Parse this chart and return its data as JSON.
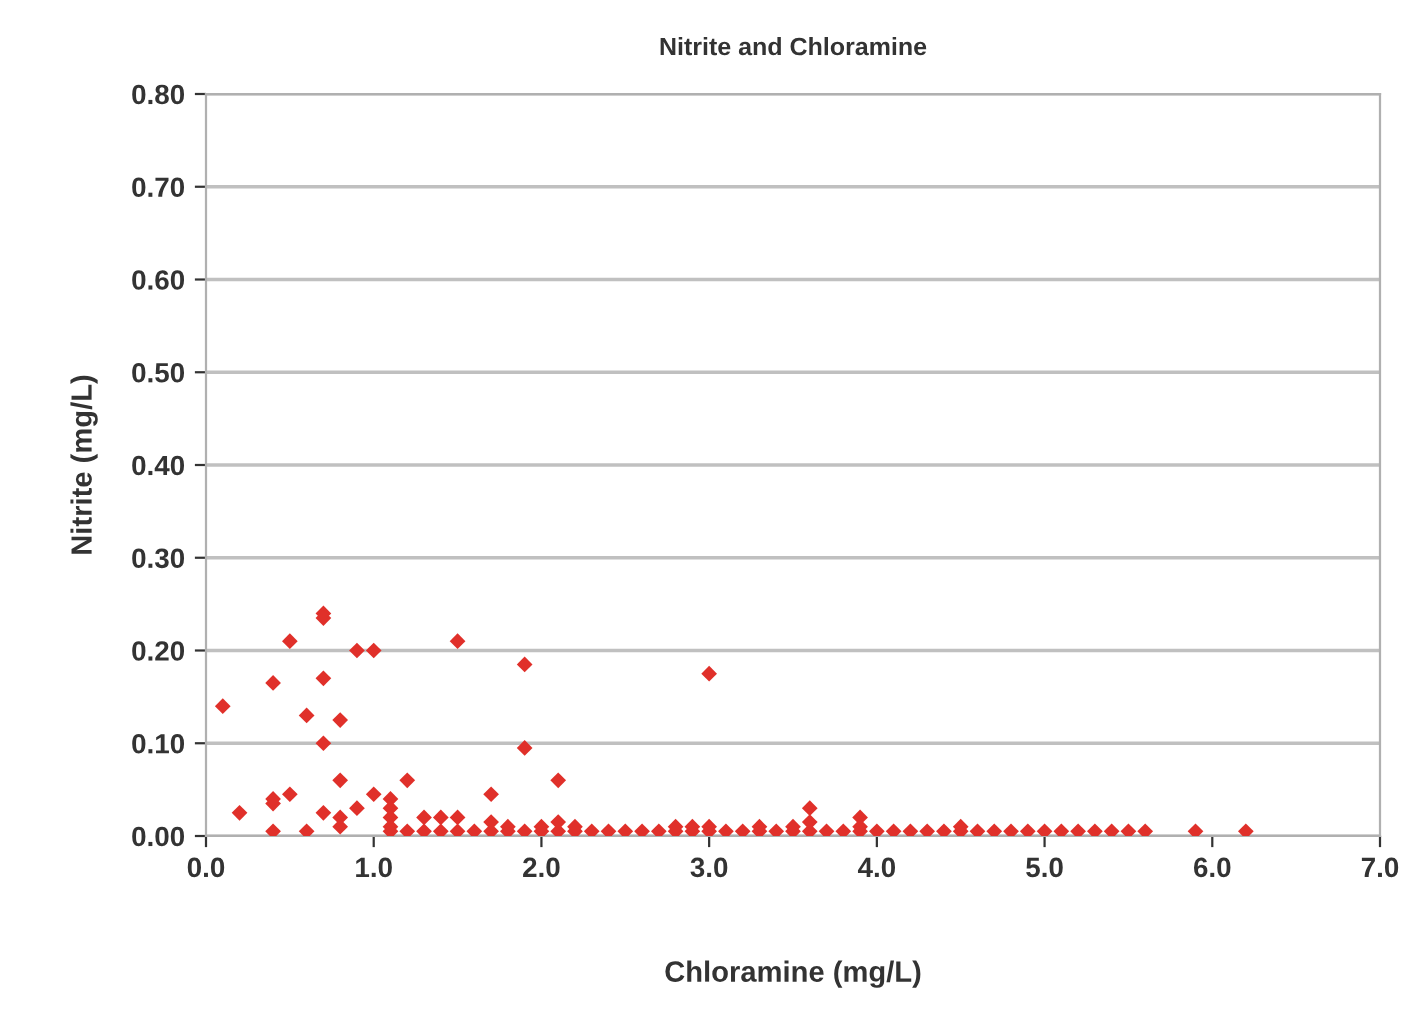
{
  "chart_data": {
    "type": "scatter",
    "title": "Nitrite and Chloramine",
    "xlabel": "Chloramine (mg/L)",
    "ylabel": "Nitrite (mg/L)",
    "xlim": [
      0,
      7
    ],
    "ylim": [
      0,
      0.8
    ],
    "xticks": [
      {
        "value": 0,
        "label": "0.0"
      },
      {
        "value": 1,
        "label": "1.0"
      },
      {
        "value": 2,
        "label": "2.0"
      },
      {
        "value": 3,
        "label": "3.0"
      },
      {
        "value": 4,
        "label": "4.0"
      },
      {
        "value": 5,
        "label": "5.0"
      },
      {
        "value": 6,
        "label": "6.0"
      },
      {
        "value": 7,
        "label": "7.0"
      }
    ],
    "yticks": [
      {
        "value": 0,
        "label": "0.00"
      },
      {
        "value": 0.1,
        "label": "0.10"
      },
      {
        "value": 0.2,
        "label": "0.20"
      },
      {
        "value": 0.3,
        "label": "0.30"
      },
      {
        "value": 0.4,
        "label": "0.40"
      },
      {
        "value": 0.5,
        "label": "0.50"
      },
      {
        "value": 0.6,
        "label": "0.60"
      },
      {
        "value": 0.7,
        "label": "0.70"
      },
      {
        "value": 0.8,
        "label": "0.80"
      }
    ],
    "grid": "y",
    "marker": "diamond",
    "series": [
      {
        "color": "#e0302a",
        "x": [
          0.1,
          0.2,
          0.4,
          0.4,
          0.4,
          0.4,
          0.5,
          0.5,
          0.6,
          0.6,
          0.7,
          0.7,
          0.7,
          0.7,
          0.7,
          0.8,
          0.8,
          0.8,
          0.8,
          0.9,
          0.9,
          1.0,
          1.0,
          1.1,
          1.1,
          1.1,
          1.1,
          1.1,
          1.2,
          1.5,
          1.7,
          1.9,
          1.9,
          2.1,
          3.0,
          3.6,
          3.9,
          5.9,
          6.2,
          1.2,
          1.3,
          1.4,
          1.5,
          1.6,
          1.7,
          1.8,
          1.9,
          2.0,
          2.1,
          2.2,
          2.3,
          2.4,
          2.5,
          2.6,
          2.7,
          2.8,
          2.9,
          3.0,
          3.1,
          3.2,
          3.3,
          3.4,
          3.5,
          3.6,
          3.7,
          3.8,
          3.9,
          4.0,
          4.1,
          4.2,
          4.3,
          4.4,
          4.5,
          4.6,
          4.7,
          4.8,
          4.9,
          5.0,
          5.1,
          5.2,
          5.3,
          5.4,
          5.5,
          5.6,
          1.3,
          1.4,
          1.5,
          1.7,
          1.8,
          2.0,
          2.1,
          2.2,
          2.8,
          2.9,
          3.0,
          3.3,
          3.5,
          3.6,
          3.9,
          4.5
        ],
        "values": [
          0.14,
          0.025,
          0.005,
          0.035,
          0.04,
          0.165,
          0.21,
          0.045,
          0.13,
          0.005,
          0.24,
          0.235,
          0.17,
          0.1,
          0.025,
          0.125,
          0.06,
          0.02,
          0.01,
          0.2,
          0.03,
          0.2,
          0.045,
          0.04,
          0.03,
          0.02,
          0.01,
          0.005,
          0.06,
          0.21,
          0.045,
          0.185,
          0.095,
          0.06,
          0.175,
          0.03,
          0.02,
          0.005,
          0.005,
          0.005,
          0.005,
          0.005,
          0.005,
          0.005,
          0.005,
          0.005,
          0.005,
          0.005,
          0.005,
          0.005,
          0.005,
          0.005,
          0.005,
          0.005,
          0.005,
          0.005,
          0.005,
          0.005,
          0.005,
          0.005,
          0.005,
          0.005,
          0.005,
          0.005,
          0.005,
          0.005,
          0.005,
          0.005,
          0.005,
          0.005,
          0.005,
          0.005,
          0.005,
          0.005,
          0.005,
          0.005,
          0.005,
          0.005,
          0.005,
          0.005,
          0.005,
          0.005,
          0.005,
          0.005,
          0.02,
          0.02,
          0.02,
          0.015,
          0.01,
          0.01,
          0.015,
          0.01,
          0.01,
          0.01,
          0.01,
          0.01,
          0.01,
          0.015,
          0.01,
          0.01
        ]
      }
    ]
  }
}
